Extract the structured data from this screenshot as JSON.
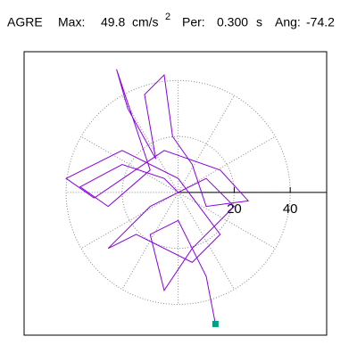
{
  "chart_data": {
    "type": "line",
    "station": "AGRE",
    "max_label": "Max:",
    "max": 49.8,
    "max_unit": "cm/s",
    "max_unit_power": 2,
    "period_label": "Per:",
    "period": {
      "value": 0.3,
      "label": "0.300"
    },
    "period_unit": "s",
    "angle_label": "Ang:",
    "angle": -74.2,
    "x": [
      0,
      -5,
      -20,
      -35,
      -25,
      -10,
      -22,
      -18,
      -8,
      -12,
      -5,
      -2,
      5,
      10,
      25,
      15,
      -5,
      -30,
      -40,
      -20,
      0,
      15,
      5,
      -15,
      -25,
      -10,
      10,
      20,
      5,
      -5,
      -10,
      0,
      5,
      10,
      13.3
    ],
    "y": [
      0,
      5,
      10,
      2,
      -5,
      8,
      44,
      30,
      12,
      35,
      42,
      20,
      10,
      -5,
      -3,
      8,
      15,
      -2,
      5,
      15,
      5,
      -15,
      -25,
      -15,
      -20,
      -5,
      5,
      -5,
      -20,
      -35,
      -15,
      -10,
      -20,
      -30,
      -47
    ],
    "color": "#8a00e0",
    "marker_color": "#00a080",
    "xlim": [
      -55,
      53
    ],
    "ylim": [
      -51,
      50.3
    ],
    "xticks": [
      20,
      40
    ],
    "grid": true
  }
}
